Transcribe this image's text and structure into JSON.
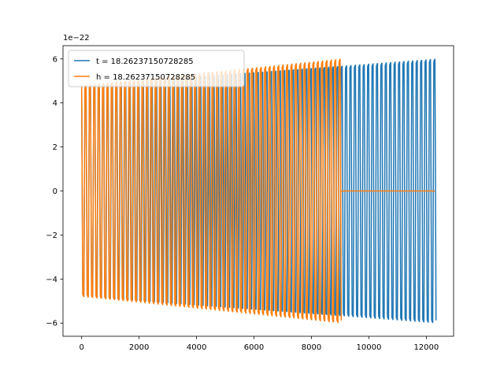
{
  "chart_data": {
    "type": "line",
    "title": "",
    "xlabel": "",
    "ylabel": "",
    "y_offset_label": "1e−22",
    "xlim": [
      -650,
      12950
    ],
    "ylim": [
      -6.6,
      6.6
    ],
    "xticks": [
      0,
      2000,
      4000,
      6000,
      8000,
      10000,
      12000
    ],
    "yticks": [
      -6,
      -4,
      -2,
      0,
      2,
      4,
      6
    ],
    "xtick_labels": [
      "0",
      "2000",
      "4000",
      "6000",
      "8000",
      "10000",
      "12000"
    ],
    "ytick_labels": [
      "−6",
      "−4",
      "−2",
      "0",
      "2",
      "4",
      "6"
    ],
    "legend_position": "upper-left",
    "grid": false,
    "series": [
      {
        "name": "t = 18.26237150728285",
        "color": "#1f77b4",
        "x_start": 0,
        "x_end": 12300,
        "amplitude_start": 4.8,
        "amplitude_end": 6.0,
        "min_value": -6.0,
        "max_value": 6.0
      },
      {
        "name": "h = 18.26237150728285",
        "color": "#ff7f0e",
        "x_start": 0,
        "x_end": 9000,
        "amplitude_start": 4.8,
        "amplitude_end": 6.0,
        "flat_after": 9000,
        "flat_until": 12300,
        "flat_value": 0
      }
    ]
  }
}
